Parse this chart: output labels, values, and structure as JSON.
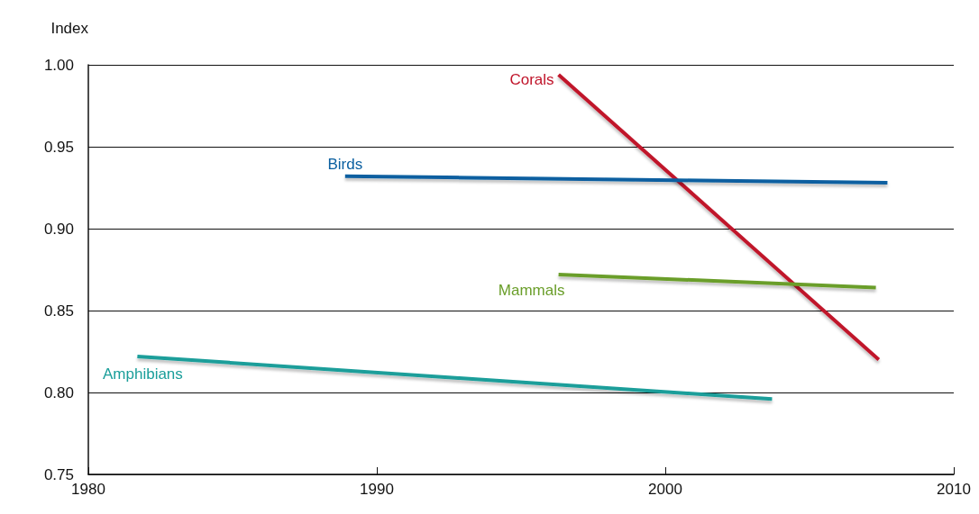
{
  "chart_data": {
    "type": "line",
    "ylabel": "Index",
    "xlim": [
      1980,
      2010
    ],
    "xticks": [
      1980,
      1990,
      2000,
      2010
    ],
    "ylim": [
      0.75,
      1.0
    ],
    "yticks": [
      {
        "value": 0.75,
        "label": "0.75"
      },
      {
        "value": 0.8,
        "label": "0.80"
      },
      {
        "value": 0.85,
        "label": "0.85"
      },
      {
        "value": 0.9,
        "label": "0.90"
      },
      {
        "value": 0.95,
        "label": "0.95"
      },
      {
        "value": 1.0,
        "label": "1.00"
      }
    ],
    "grid": "y",
    "legend": false,
    "marker": "none",
    "line_style": "solid",
    "series": [
      {
        "name": "Corals",
        "color": "#c0142a",
        "x": [
          1996.3,
          2007.4
        ],
        "values": [
          0.994,
          0.82
        ]
      },
      {
        "name": "Birds",
        "color": "#0a5fa0",
        "x": [
          1988.9,
          2007.7
        ],
        "values": [
          0.932,
          0.928
        ]
      },
      {
        "name": "Mammals",
        "color": "#6a9e2a",
        "x": [
          1996.3,
          2007.3
        ],
        "values": [
          0.872,
          0.864
        ]
      },
      {
        "name": "Amphibians",
        "color": "#1a9e9a",
        "x": [
          1981.7,
          2003.7
        ],
        "values": [
          0.822,
          0.796
        ]
      }
    ]
  }
}
